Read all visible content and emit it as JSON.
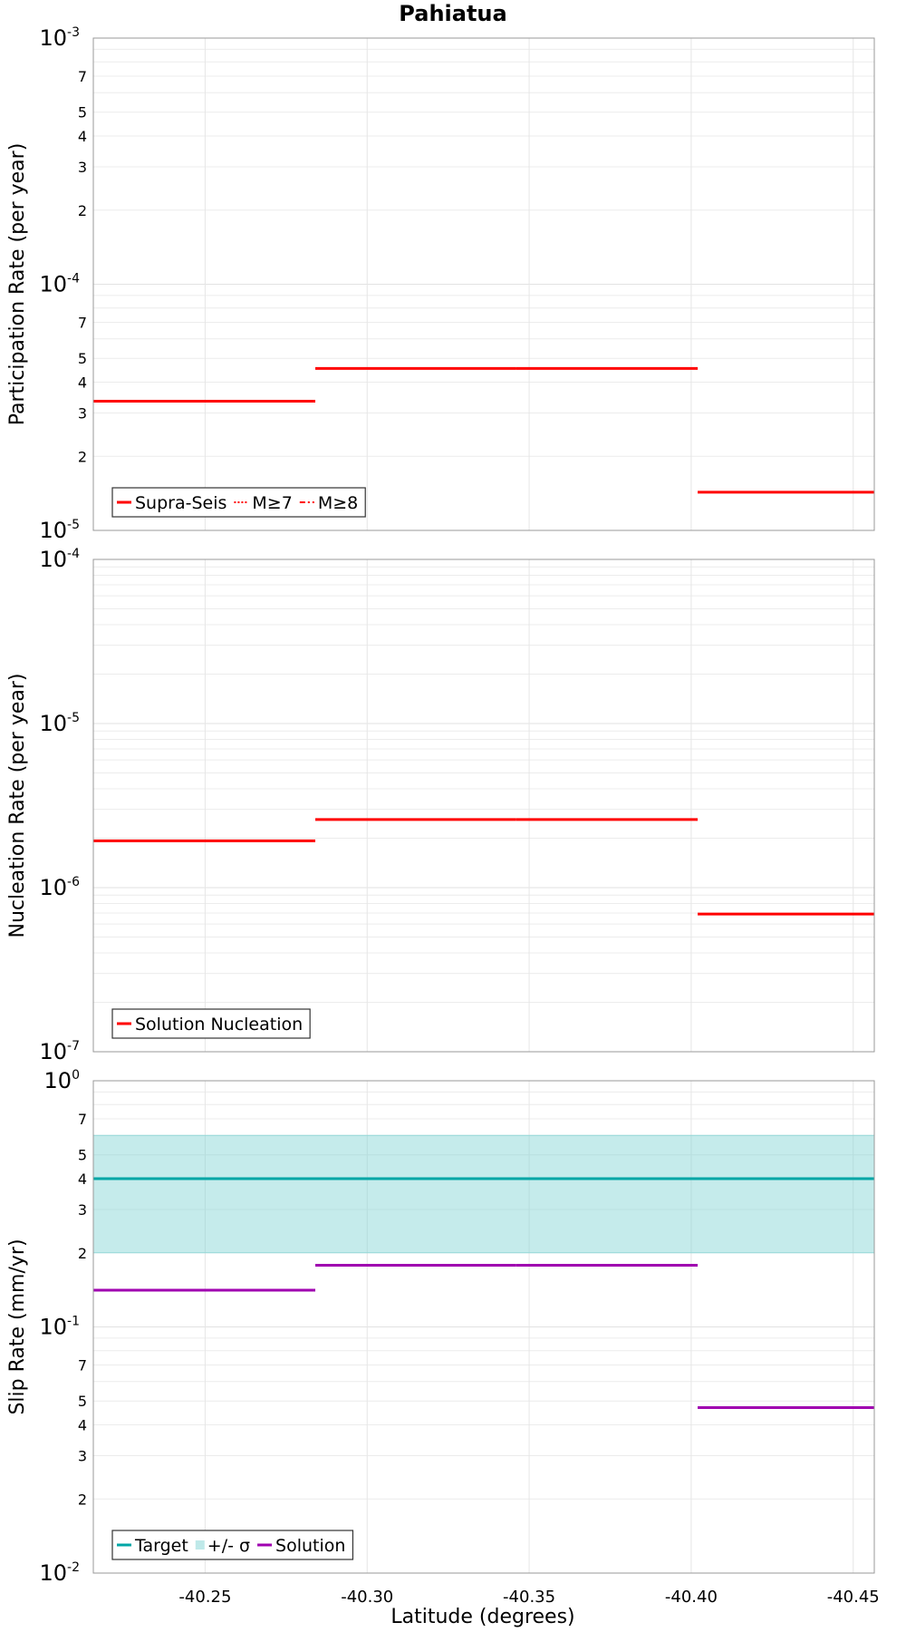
{
  "chart_data": [
    {
      "type": "line",
      "title": "Pahiatua",
      "ylabel": "Participation Rate (per year)",
      "yscale": "log",
      "ylim": [
        1e-05,
        0.001
      ],
      "xlim": [
        -40.2155,
        -40.4565
      ],
      "x_reversed": true,
      "grid": true,
      "legend_placement": "bottom-left",
      "legend": [
        {
          "label": "Supra-Seis",
          "style": "solid"
        },
        {
          "label": "M≥7",
          "style": "dotted"
        },
        {
          "label": "M≥8",
          "style": "dashdot"
        }
      ],
      "series": [
        {
          "style": "solid",
          "color": "#ff0000",
          "segments": [
            {
              "x": [
                -40.2155,
                -40.284
              ],
              "y": 3.35e-05
            },
            {
              "x": [
                -40.284,
                -40.346
              ],
              "y": 4.55e-05
            },
            {
              "x": [
                -40.346,
                -40.402
              ],
              "y": 4.55e-05
            },
            {
              "x": [
                -40.402,
                -40.4565
              ],
              "y": 1.43e-05
            }
          ]
        },
        {
          "style": "dotted",
          "color": "#ff0000",
          "segments": [
            {
              "x": [
                -40.2155,
                -40.284
              ],
              "y": 3.35e-05
            },
            {
              "x": [
                -40.284,
                -40.346
              ],
              "y": 4.55e-05
            },
            {
              "x": [
                -40.346,
                -40.402
              ],
              "y": 4.55e-05
            }
          ]
        }
      ],
      "major_ticks": [
        {
          "base": "10",
          "exp": "-3"
        },
        {
          "base": "10",
          "exp": "-4"
        },
        {
          "base": "10",
          "exp": "-5"
        }
      ],
      "major_values": [
        0.001,
        0.0001,
        1e-05
      ],
      "minor_ticks": [
        {
          "label": "7",
          "value": 0.0007
        },
        {
          "label": "5",
          "value": 0.0005
        },
        {
          "label": "4",
          "value": 0.0004
        },
        {
          "label": "3",
          "value": 0.0003
        },
        {
          "label": "2",
          "value": 0.0002
        },
        {
          "label": "7",
          "value": 7e-05
        },
        {
          "label": "5",
          "value": 5e-05
        },
        {
          "label": "4",
          "value": 4e-05
        },
        {
          "label": "3",
          "value": 3e-05
        },
        {
          "label": "2",
          "value": 2e-05
        }
      ]
    },
    {
      "type": "line",
      "ylabel": "Nucleation Rate (per year)",
      "yscale": "log",
      "ylim": [
        1e-07,
        0.0001
      ],
      "xlim": [
        -40.2155,
        -40.4565
      ],
      "x_reversed": true,
      "grid": true,
      "legend_placement": "bottom-left",
      "legend": [
        {
          "label": "Solution Nucleation",
          "style": "solid"
        }
      ],
      "series": [
        {
          "style": "solid",
          "color": "#ff0000",
          "segments": [
            {
              "x": [
                -40.2155,
                -40.284
              ],
              "y": 1.93e-06
            },
            {
              "x": [
                -40.284,
                -40.346
              ],
              "y": 2.6e-06
            },
            {
              "x": [
                -40.346,
                -40.402
              ],
              "y": 2.6e-06
            },
            {
              "x": [
                -40.402,
                -40.4565
              ],
              "y": 6.9e-07
            }
          ]
        }
      ],
      "major_ticks": [
        {
          "base": "10",
          "exp": "-4"
        },
        {
          "base": "10",
          "exp": "-5"
        },
        {
          "base": "10",
          "exp": "-6"
        },
        {
          "base": "10",
          "exp": "-7"
        }
      ],
      "major_values": [
        0.0001,
        1e-05,
        1e-06,
        1e-07
      ],
      "minor_ticks": []
    },
    {
      "type": "line",
      "ylabel": "Slip Rate (mm/yr)",
      "xlabel": "Latitude (degrees)",
      "yscale": "log",
      "ylim": [
        0.01,
        1
      ],
      "xlim": [
        -40.2155,
        -40.4565
      ],
      "x_reversed": true,
      "x_ticks": [
        "-40.25",
        "-40.30",
        "-40.35",
        "-40.40",
        "-40.45"
      ],
      "x_tick_values": [
        -40.25,
        -40.3,
        -40.35,
        -40.4,
        -40.45
      ],
      "grid": true,
      "legend_placement": "bottom-left",
      "legend": [
        {
          "label": "Target",
          "style": "solid"
        },
        {
          "label": "+/- σ",
          "style": "fill"
        },
        {
          "label": "Solution",
          "style": "solid"
        }
      ],
      "band": {
        "color": "#7fd3d3",
        "x": [
          -40.2155,
          -40.4565
        ],
        "y": [
          0.2,
          0.6
        ]
      },
      "series": [
        {
          "style": "solid",
          "color": "#00a6a6",
          "segments": [
            {
              "x": [
                -40.2155,
                -40.4565
              ],
              "y": 0.4
            }
          ]
        },
        {
          "style": "solid",
          "color": "#a000b0",
          "segments": [
            {
              "x": [
                -40.2155,
                -40.284
              ],
              "y": 0.141
            },
            {
              "x": [
                -40.284,
                -40.346
              ],
              "y": 0.178
            },
            {
              "x": [
                -40.346,
                -40.402
              ],
              "y": 0.178
            },
            {
              "x": [
                -40.402,
                -40.4565
              ],
              "y": 0.047
            }
          ]
        }
      ],
      "major_ticks": [
        {
          "base": "10",
          "exp": "0"
        },
        {
          "base": "10",
          "exp": "-1"
        },
        {
          "base": "10",
          "exp": "-2"
        }
      ],
      "major_values": [
        1,
        0.1,
        0.01
      ],
      "minor_ticks": [
        {
          "label": "7",
          "value": 0.7
        },
        {
          "label": "5",
          "value": 0.5
        },
        {
          "label": "4",
          "value": 0.4
        },
        {
          "label": "3",
          "value": 0.3
        },
        {
          "label": "2",
          "value": 0.2
        },
        {
          "label": "7",
          "value": 0.07
        },
        {
          "label": "5",
          "value": 0.05
        },
        {
          "label": "4",
          "value": 0.04
        },
        {
          "label": "3",
          "value": 0.03
        },
        {
          "label": "2",
          "value": 0.02
        }
      ]
    }
  ],
  "colors": {
    "red": "#ff0000",
    "teal": "#00a6a6",
    "band": "#7fd3d3",
    "purple": "#a000b0"
  }
}
